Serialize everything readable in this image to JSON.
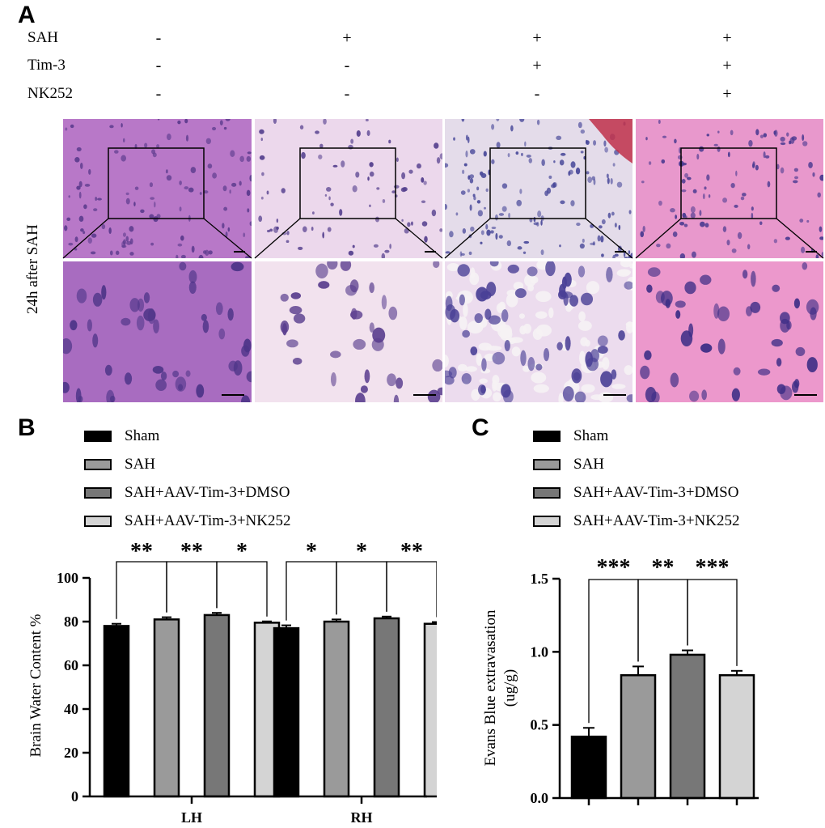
{
  "panels": {
    "a": "A",
    "b": "B",
    "c": "C"
  },
  "design_table": {
    "rows": [
      {
        "label": "SAH",
        "values": [
          "-",
          "+",
          "+",
          "+"
        ]
      },
      {
        "label": "Tim-3",
        "values": [
          "-",
          "-",
          "+",
          "+"
        ]
      },
      {
        "label": "NK252",
        "values": [
          "-",
          "-",
          "-",
          "+"
        ]
      }
    ]
  },
  "histology": {
    "row_label": "24h after SAH",
    "tile_colors": {
      "low": [
        "#b878c8",
        "#ecd8ec",
        "#e4dcea",
        "#e898cc"
      ],
      "high": [
        "#a86cc0",
        "#f2e2ee",
        "#ecdcee",
        "#ec98cc"
      ]
    }
  },
  "chart_data": [
    {
      "type": "bar",
      "legend": [
        "Sham",
        "SAH",
        "SAH+AAV-Tim-3+DMSO",
        "SAH+AAV-Tim-3+NK252"
      ],
      "legend_placement": "top-left",
      "colors": [
        "#000000",
        "#9a9a9a",
        "#777777",
        "#d4d4d4"
      ],
      "categories": [
        "LH",
        "RH"
      ],
      "series": [
        {
          "name": "Sham",
          "values": [
            78,
            77
          ],
          "errors": [
            1.0,
            1.3
          ]
        },
        {
          "name": "SAH",
          "values": [
            81,
            80
          ],
          "errors": [
            1.0,
            1.0
          ]
        },
        {
          "name": "SAH+AAV-Tim-3+DMSO",
          "values": [
            83,
            81.5
          ],
          "errors": [
            1.0,
            0.8
          ]
        },
        {
          "name": "SAH+AAV-Tim-3+NK252",
          "values": [
            79.5,
            79
          ],
          "errors": [
            0.6,
            0.8
          ]
        }
      ],
      "ylabel": "Brain Water Content %",
      "ylim": [
        0,
        100
      ],
      "yticks": [
        "0",
        "20",
        "40",
        "60",
        "80",
        "100"
      ],
      "significance": [
        {
          "category": 0,
          "from": 0,
          "to": 1,
          "label": "**"
        },
        {
          "category": 0,
          "from": 1,
          "to": 2,
          "label": "**"
        },
        {
          "category": 0,
          "from": 2,
          "to": 3,
          "label": "*"
        },
        {
          "category": 1,
          "from": 0,
          "to": 1,
          "label": "*"
        },
        {
          "category": 1,
          "from": 1,
          "to": 2,
          "label": "*"
        },
        {
          "category": 1,
          "from": 2,
          "to": 3,
          "label": "**"
        }
      ],
      "grid": false
    },
    {
      "type": "bar",
      "legend": [
        "Sham",
        "SAH",
        "SAH+AAV-Tim-3+DMSO",
        "SAH+AAV-Tim-3+NK252"
      ],
      "legend_placement": "top-left",
      "colors": [
        "#000000",
        "#9a9a9a",
        "#777777",
        "#d4d4d4"
      ],
      "categories": [
        "Sham",
        "SAH",
        "SAH+AAV-Tim-3+DMSO",
        "SAH+AAV-Tim-3+NK252"
      ],
      "values": [
        0.42,
        0.84,
        0.98,
        0.84
      ],
      "errors": [
        0.06,
        0.06,
        0.03,
        0.03
      ],
      "ylabel": "Evans Blue extravasation",
      "ylabel_unit": "(ug/g)",
      "ylim": [
        0,
        1.5
      ],
      "yticks": [
        "0.0",
        "0.5",
        "1.0",
        "1.5"
      ],
      "significance": [
        {
          "from": 0,
          "to": 1,
          "label": "***"
        },
        {
          "from": 1,
          "to": 2,
          "label": "**"
        },
        {
          "from": 2,
          "to": 3,
          "label": "***"
        }
      ],
      "grid": false
    }
  ]
}
